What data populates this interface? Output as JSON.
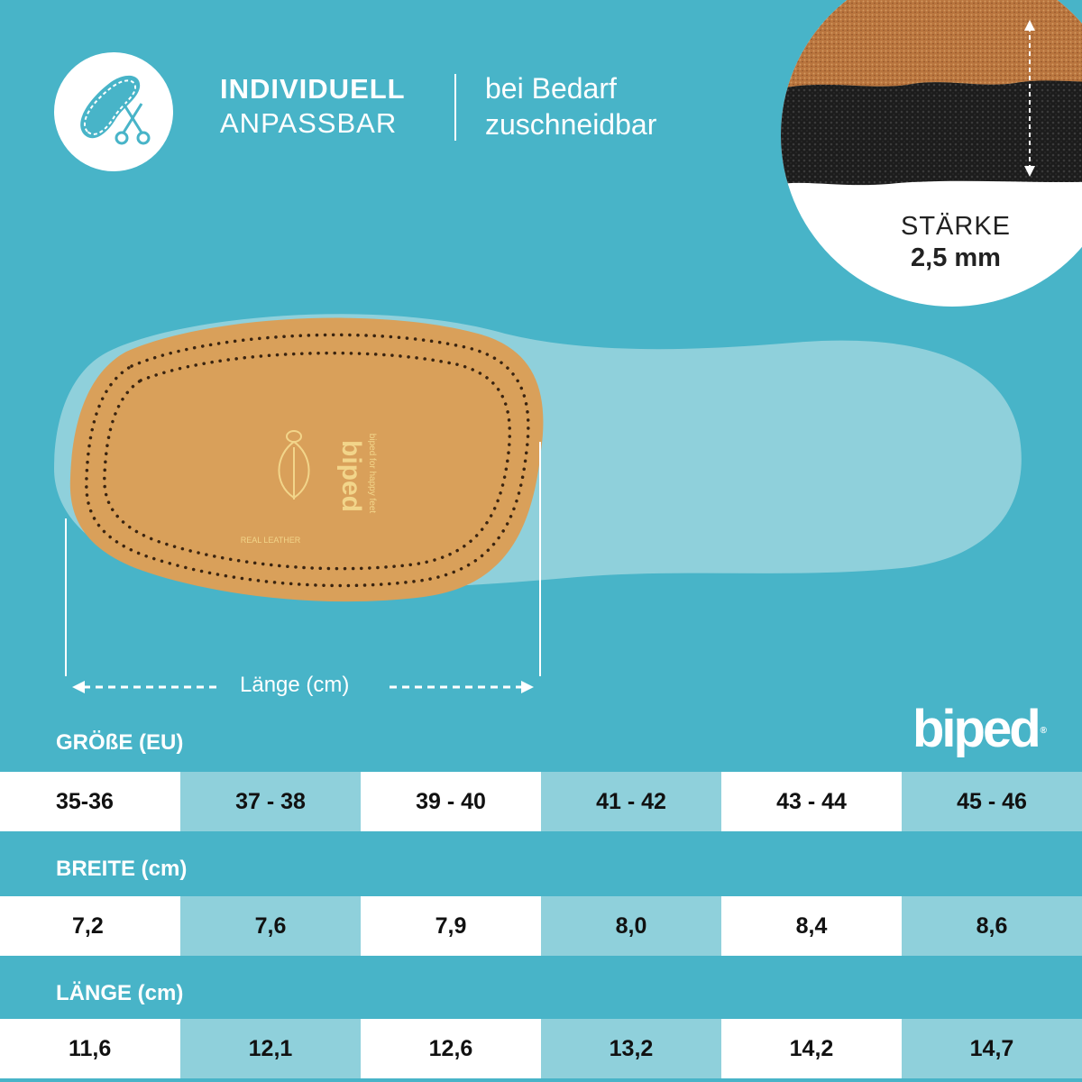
{
  "header": {
    "title_line1": "INDIVIDUELL",
    "title_line2": "ANPASSBAR",
    "desc_line1": "bei Bedarf",
    "desc_line2": "zuschneidbar",
    "badge_icon": "insole-scissors-icon"
  },
  "thickness": {
    "label": "STÄRKE",
    "value": "2,5 mm"
  },
  "insole": {
    "length_label": "Länge (cm)",
    "emboss_brand": "biped",
    "emboss_slogan": "biped for happy feet",
    "emboss_material": "REAL LEATHER"
  },
  "brand": {
    "logo": "biped",
    "registered": "®"
  },
  "table": {
    "size_label": "GRÖßE (EU)",
    "width_label": "BREITE (cm)",
    "length_label": "LÄNGE (cm)",
    "sizes": [
      "35-36",
      "37 - 38",
      "39 - 40",
      "41 - 42",
      "43 - 44",
      "45 - 46"
    ],
    "widths": [
      "7,2",
      "7,6",
      "7,9",
      "8,0",
      "8,4",
      "8,6"
    ],
    "lengths": [
      "11,6",
      "12,1",
      "12,6",
      "13,2",
      "14,2",
      "14,7"
    ]
  },
  "colors": {
    "background": "#48b4c8",
    "cell_light": "#8fd0db",
    "leather": "#d9a05a"
  }
}
